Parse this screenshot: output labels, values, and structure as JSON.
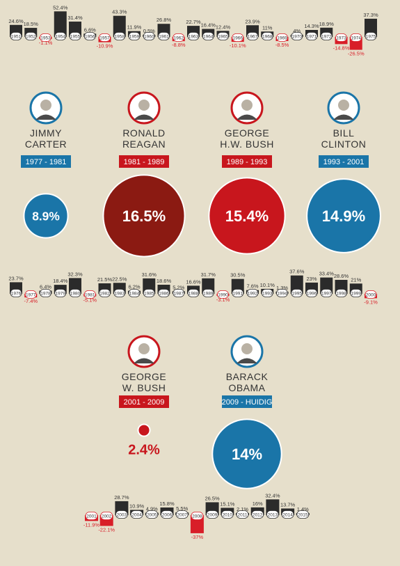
{
  "colors": {
    "background": "#e6dfcb",
    "bar_positive": "#2b2b2b",
    "bar_negative": "#d81e28",
    "label_negative": "#d81e28",
    "democrat": "#1a75a8",
    "republican": "#c8161d",
    "reagan_dark": "#8b1a12"
  },
  "chart_data": {
    "type": "bar",
    "series": [
      {
        "years": [
          "1951",
          "1952",
          "1953",
          "1954",
          "1955",
          "1956",
          "1957",
          "1958",
          "1959",
          "1960",
          "1961",
          "1962",
          "1963",
          "1964",
          "1965",
          "1966",
          "1967",
          "1968",
          "1969",
          "1970",
          "1971",
          "1972",
          "1973",
          "1974",
          "1975"
        ],
        "values": [
          24.6,
          18.5,
          -1.1,
          52.4,
          31.4,
          6.6,
          -10.9,
          43.3,
          11.9,
          0.5,
          26.8,
          -8.8,
          22.7,
          16.4,
          12.4,
          -10.1,
          23.9,
          11,
          -8.5,
          4,
          14.3,
          18.9,
          -14.8,
          -26.5,
          37.3
        ],
        "labels": [
          "24.6%",
          "18.5%",
          "-1.1%",
          "52.4%",
          "31.4%",
          "6.6%",
          "-10.9%",
          "43.3%",
          "11.9%",
          "0.5%",
          "26.8%",
          "-8.8%",
          "22.7%",
          "16.4%",
          "12.4%",
          "-10.1%",
          "23.9%",
          "11%",
          "-8.5%",
          "4%",
          "14.3%",
          "18.9%",
          "-14.8%",
          "-26.5%",
          "37.3%"
        ]
      },
      {
        "years": [
          "1976",
          "1977",
          "1978",
          "1979",
          "1980",
          "1981",
          "1982",
          "1983",
          "1984",
          "1985",
          "1986",
          "1987",
          "1988",
          "1989",
          "1990",
          "1991",
          "1992",
          "1993",
          "1994",
          "1995",
          "1996",
          "1997",
          "1998",
          "1999",
          "2000"
        ],
        "values": [
          23.7,
          -7.4,
          6.4,
          18.4,
          32.3,
          -5.1,
          21.5,
          22.5,
          6.2,
          31.6,
          18.6,
          5.2,
          16.6,
          31.7,
          -3.1,
          30.5,
          7.6,
          10.1,
          1.3,
          37.6,
          23,
          33.4,
          28.6,
          21,
          -9.1
        ],
        "labels": [
          "23.7%",
          "-7.4%",
          "6.4%",
          "18.4%",
          "32.3%",
          "-5.1%",
          "21.5%",
          "22.5%",
          "6.2%",
          "31.6%",
          "18.6%",
          "5.2%",
          "16.6%",
          "31.7%",
          "-3.1%",
          "30.5%",
          "7.6%",
          "10.1%",
          "1.3%",
          "37.6%",
          "23%",
          "33.4%",
          "28.6%",
          "21%",
          "-9.1%"
        ]
      },
      {
        "years": [
          "2001",
          "2002",
          "2003",
          "2004",
          "2005",
          "2006",
          "2007",
          "2008",
          "2009",
          "2010",
          "2011",
          "2012",
          "2013",
          "2014",
          "2015"
        ],
        "values": [
          -11.9,
          -22.1,
          28.7,
          10.9,
          4.9,
          15.8,
          5.5,
          -37,
          26.5,
          15.1,
          2.1,
          16,
          32.4,
          13.7,
          1.4
        ],
        "labels": [
          "-11.9%",
          "-22.1%",
          "28.7%",
          "10.9%",
          "4.9%",
          "15.8%",
          "5.5%",
          "-37%",
          "26.5%",
          "15.1%",
          "2.1%",
          "16%",
          "32.4%",
          "13.7%",
          "1.4%"
        ]
      }
    ],
    "presidents": [
      {
        "name": "JIMMY CARTER",
        "line1": "JIMMY",
        "line2": "CARTER",
        "term": "1977 - 1981",
        "avg": 8.9,
        "avg_label": "8.9%",
        "party": "democrat"
      },
      {
        "name": "RONALD REAGAN",
        "line1": "RONALD",
        "line2": "REAGAN",
        "term": "1981 - 1989",
        "avg": 16.5,
        "avg_label": "16.5%",
        "party": "republican"
      },
      {
        "name": "GEORGE H.W. BUSH",
        "line1": "GEORGE",
        "line2": "H.W. BUSH",
        "term": "1989 - 1993",
        "avg": 15.4,
        "avg_label": "15.4%",
        "party": "republican"
      },
      {
        "name": "BILL CLINTON",
        "line1": "BILL",
        "line2": "CLINTON",
        "term": "1993 - 2001",
        "avg": 14.9,
        "avg_label": "14.9%",
        "party": "democrat"
      },
      {
        "name": "GEORGE W. BUSH",
        "line1": "GEORGE",
        "line2": "W. BUSH",
        "term": "2001 - 2009",
        "avg": 2.4,
        "avg_label": "2.4%",
        "party": "republican"
      },
      {
        "name": "BARACK OBAMA",
        "line1": "BARACK",
        "line2": "OBAMA",
        "term": "2009 - HUIDIG",
        "avg": 14,
        "avg_label": "14%",
        "party": "democrat"
      }
    ]
  }
}
